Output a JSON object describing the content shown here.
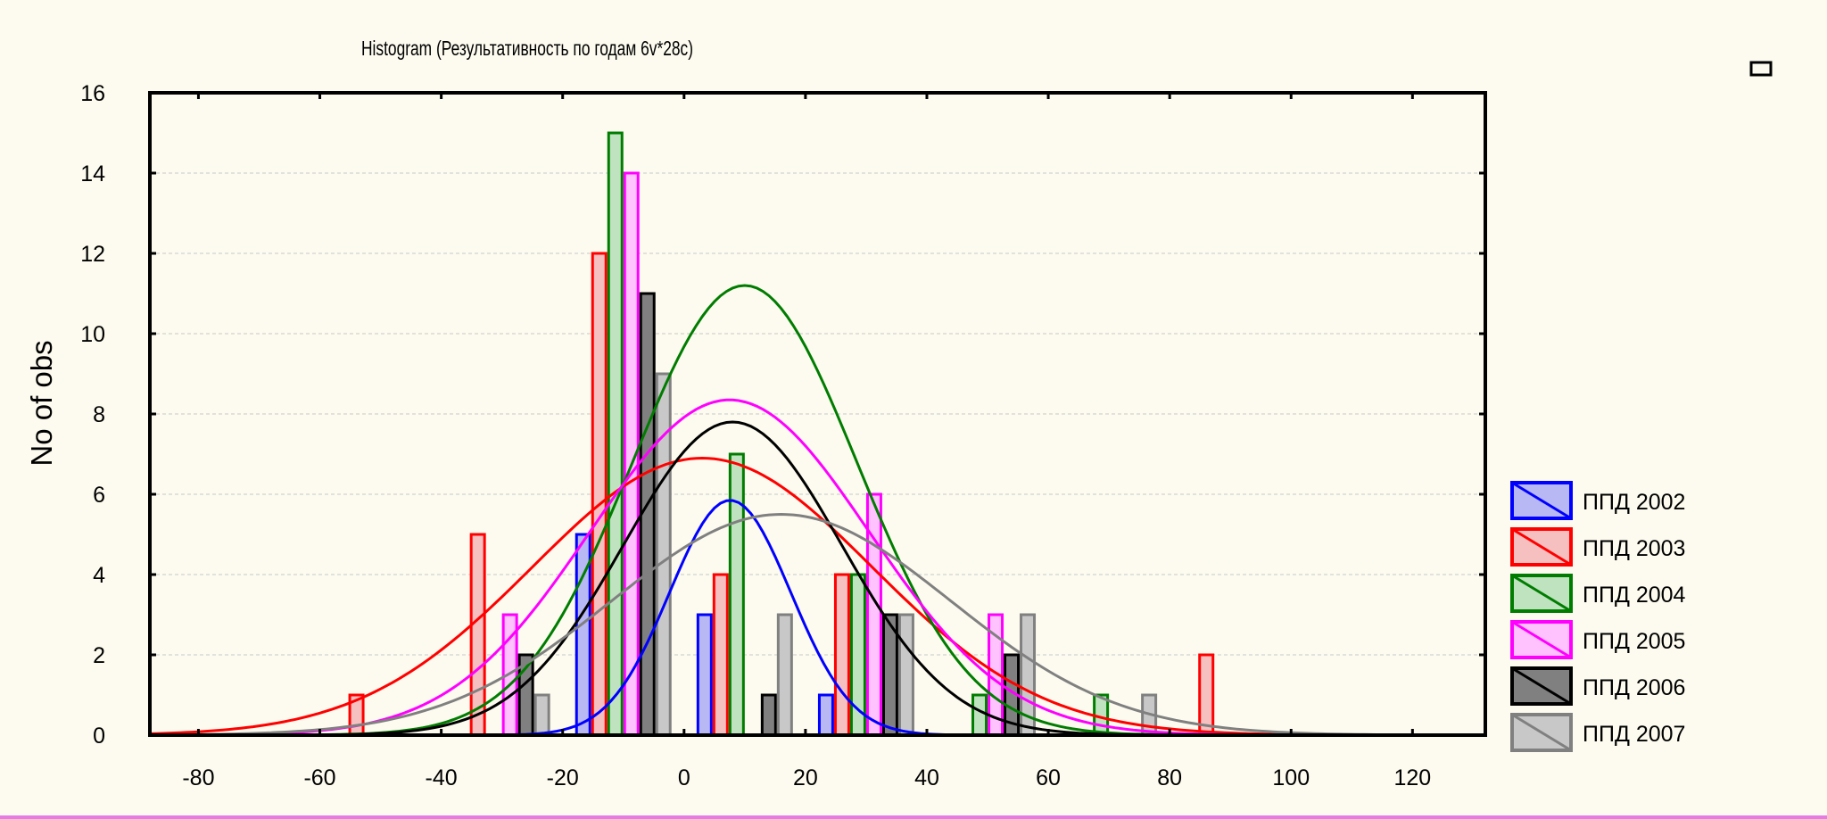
{
  "chart_data": {
    "type": "bar",
    "title": "Histogram (Результативность по годам 6v*28c)",
    "xlabel": "",
    "ylabel": "No of obs",
    "xlim": [
      -88,
      132
    ],
    "ylim": [
      0,
      16
    ],
    "x_ticks": [
      -80,
      -60,
      -40,
      -20,
      0,
      20,
      40,
      60,
      80,
      100,
      120
    ],
    "y_ticks": [
      0,
      2,
      4,
      6,
      8,
      10,
      12,
      14,
      16
    ],
    "grid": true,
    "legend_position": "right",
    "bin_width": 20,
    "series": [
      {
        "name": "ППД 2002",
        "color": "#0000ff",
        "fill": "#b8b8f4",
        "bins": [
          [
            -10,
            5
          ],
          [
            10,
            3
          ],
          [
            30,
            1
          ]
        ],
        "curve": {
          "mean": 7.6,
          "sd": 10.0,
          "peak": 5.85
        }
      },
      {
        "name": "ППД 2003",
        "color": "#ff0000",
        "fill": "#f7c0c0",
        "bins": [
          [
            -50,
            1
          ],
          [
            -30,
            5
          ],
          [
            -10,
            12
          ],
          [
            10,
            4
          ],
          [
            30,
            4
          ],
          [
            90,
            2
          ]
        ],
        "curve": {
          "mean": 3,
          "sd": 28,
          "peak": 6.9
        }
      },
      {
        "name": "ППД 2004",
        "color": "#007d00",
        "fill": "#bfe3bf",
        "bins": [
          [
            -10,
            15
          ],
          [
            10,
            7
          ],
          [
            30,
            4
          ],
          [
            50,
            1
          ],
          [
            70,
            1
          ]
        ],
        "curve": {
          "mean": 10,
          "sd": 18.5,
          "peak": 11.2
        }
      },
      {
        "name": "ППД 2005",
        "color": "#ff00ff",
        "fill": "#ffc2ff",
        "bins": [
          [
            -30,
            3
          ],
          [
            -10,
            14
          ],
          [
            30,
            6
          ],
          [
            50,
            3
          ]
        ],
        "curve": {
          "mean": 7.5,
          "sd": 23,
          "peak": 8.35
        }
      },
      {
        "name": "ППД 2006",
        "color": "#000000",
        "fill": "#808080",
        "bins": [
          [
            -30,
            2
          ],
          [
            -10,
            11
          ],
          [
            10,
            1
          ],
          [
            30,
            3
          ],
          [
            50,
            2
          ]
        ],
        "curve": {
          "mean": 8,
          "sd": 18,
          "peak": 7.8
        }
      },
      {
        "name": "ППД 2007",
        "color": "#808080",
        "fill": "#c8c8c8",
        "bins": [
          [
            -30,
            1
          ],
          [
            -10,
            9
          ],
          [
            10,
            3
          ],
          [
            30,
            3
          ],
          [
            50,
            3
          ],
          [
            70,
            1
          ]
        ],
        "curve": {
          "mean": 16,
          "sd": 28,
          "peak": 5.5
        }
      }
    ]
  }
}
